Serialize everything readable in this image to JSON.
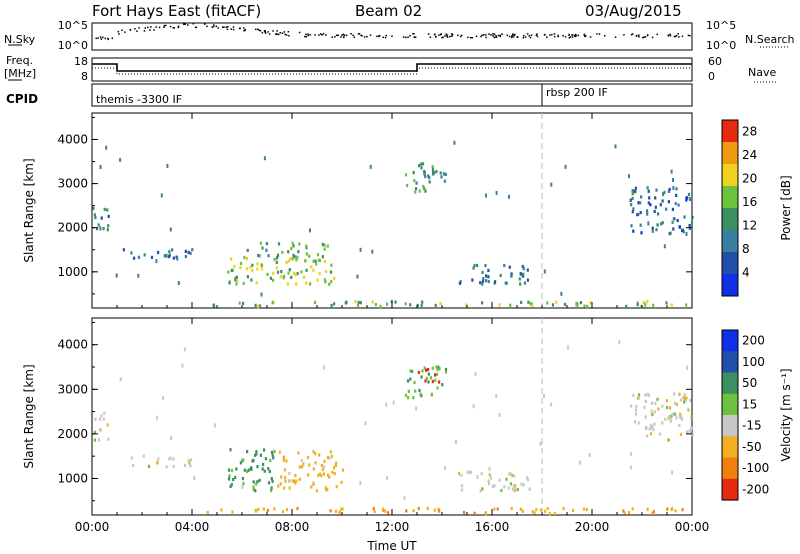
{
  "header": {
    "station": "Fort Hays East (fitACF)",
    "beam": "Beam 02",
    "date": "03/Aug/2015"
  },
  "noise_panel": {
    "left_label": "N.Sky",
    "right_label": "N.Search",
    "left_top_tick": "10^5",
    "left_bottom_tick": "10^0",
    "right_top_tick": "10^5",
    "right_bottom_tick": "10^0"
  },
  "freq_panel": {
    "left_label_line1": "Freq.",
    "left_label_line2": "[MHz]",
    "right_label": "Nave",
    "left_ticks": [
      "18",
      "8"
    ],
    "right_ticks": [
      "60",
      "0"
    ]
  },
  "cpid_panel": {
    "label": "CPID",
    "segments": [
      {
        "text": "themis -3300 IF"
      },
      {
        "text": "rbsp 200 IF"
      }
    ]
  },
  "chart_data": [
    {
      "type": "heatmap",
      "name": "power",
      "ylabel": "Slant Range [km]",
      "yticks": [
        "1000",
        "2000",
        "3000",
        "4000"
      ],
      "xticks": [
        "00:00",
        "04:00",
        "08:00",
        "12:00",
        "16:00",
        "20:00",
        "00:00"
      ],
      "xlim_hours": [
        0,
        24
      ],
      "ylim_km": [
        180,
        4600
      ],
      "colorbar": {
        "label": "Power [dB]",
        "ticks": [
          "4",
          "8",
          "12",
          "16",
          "20",
          "24",
          "28"
        ],
        "range": [
          0,
          30
        ],
        "colors": [
          "#1030e6",
          "#2050a8",
          "#3a7fa0",
          "#3c9060",
          "#6cc23c",
          "#f0d020",
          "#f09a10",
          "#e62a10"
        ]
      },
      "rbsp_switch_hour": 18.0,
      "echo_regions": [
        {
          "h0": 0.0,
          "h1": 0.7,
          "r0": 1850,
          "r1": 2500,
          "value": 10
        },
        {
          "h0": 1.2,
          "h1": 4.0,
          "r0": 1250,
          "r1": 1500,
          "value": 9
        },
        {
          "h0": 5.4,
          "h1": 10.0,
          "r0": 700,
          "r1": 1300,
          "value": 18
        },
        {
          "h0": 6.0,
          "h1": 9.4,
          "r0": 1300,
          "r1": 1650,
          "value": 14
        },
        {
          "h0": 12.5,
          "h1": 14.2,
          "r0": 2800,
          "r1": 3500,
          "value": 12
        },
        {
          "h0": 14.5,
          "h1": 17.5,
          "r0": 700,
          "r1": 1150,
          "value": 9
        },
        {
          "h0": 21.5,
          "h1": 24.0,
          "r0": 1850,
          "r1": 2900,
          "value": 8
        },
        {
          "h0": 4.5,
          "h1": 24.0,
          "r0": 200,
          "r1": 320,
          "value": 16
        }
      ]
    },
    {
      "type": "heatmap",
      "name": "velocity",
      "ylabel": "Slant Range [km]",
      "yticks": [
        "1000",
        "2000",
        "3000",
        "4000"
      ],
      "xticks": [
        "00:00",
        "04:00",
        "08:00",
        "12:00",
        "16:00",
        "20:00",
        "00:00"
      ],
      "xlabel": "Time UT",
      "xlim_hours": [
        0,
        24
      ],
      "ylim_km": [
        180,
        4600
      ],
      "colorbar": {
        "label": "Velocity [m s⁻¹]",
        "ticks": [
          "200",
          "100",
          "50",
          "15",
          "-15",
          "-50",
          "-100",
          "-200"
        ],
        "colors": [
          "#1030e6",
          "#2050a8",
          "#3c9060",
          "#6cc23c",
          "#c8c8c8",
          "#f0b020",
          "#f08010",
          "#e62a10"
        ]
      },
      "rbsp_switch_hour": 18.0,
      "echo_regions": [
        {
          "h0": 0.0,
          "h1": 0.7,
          "r0": 1850,
          "r1": 2500,
          "value": 0
        },
        {
          "h0": 1.2,
          "h1": 4.0,
          "r0": 1250,
          "r1": 1500,
          "value": 0
        },
        {
          "h0": 5.4,
          "h1": 7.4,
          "r0": 700,
          "r1": 1650,
          "value": 60
        },
        {
          "h0": 7.4,
          "h1": 10.0,
          "r0": 700,
          "r1": 1600,
          "value": -30
        },
        {
          "h0": 12.5,
          "h1": 14.2,
          "r0": 2800,
          "r1": 3500,
          "value": 40
        },
        {
          "h0": 13.0,
          "h1": 13.9,
          "r0": 3150,
          "r1": 3450,
          "value": -250
        },
        {
          "h0": 14.5,
          "h1": 17.5,
          "r0": 700,
          "r1": 1150,
          "value": 0
        },
        {
          "h0": 21.5,
          "h1": 24.0,
          "r0": 1850,
          "r1": 2900,
          "value": 0
        },
        {
          "h0": 4.5,
          "h1": 24.0,
          "r0": 200,
          "r1": 320,
          "value": -40
        }
      ]
    }
  ]
}
